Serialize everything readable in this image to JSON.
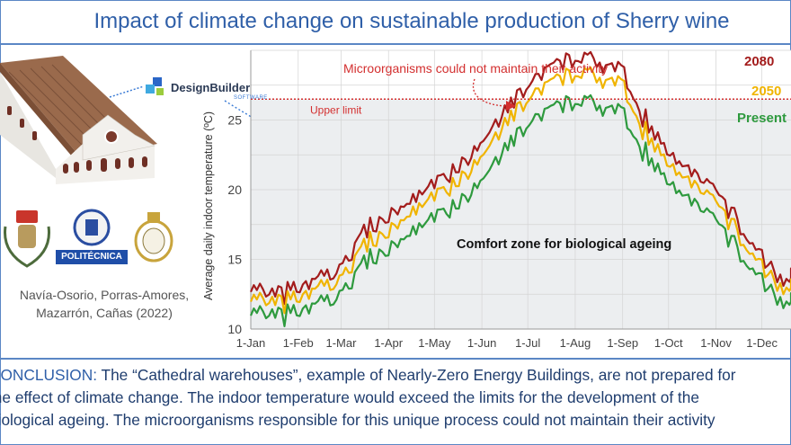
{
  "title": "Impact of climate change on sustainable production of Sherry wine",
  "reference_line1": "Navía-Osorio, Porras-Amores,",
  "reference_line2": "Mazarrón, Cañas (2022)",
  "software": {
    "name": "DesignBuilder",
    "sub": "SOFTWARE"
  },
  "institution_badge": "POLITÉCNICA",
  "conclusion": {
    "lead": "CONCLUSION:",
    "line1": " The “Cathedral warehouses”, example of Nearly-Zero Energy Buildings, are not prepared for",
    "line2": "the effect of climate change. The indoor temperature would exceed the limits for the development of the",
    "line3": "biological ageing. The microorganisms responsible for this unique process could not maintain their activity"
  },
  "colors": {
    "accent": "#2f5fa8",
    "y2080": "#a31c1c",
    "y2050": "#f0b400",
    "present": "#2e9a3e",
    "upper_limit": "#d32f2f"
  },
  "chart_data": {
    "type": "line",
    "title": "",
    "ylabel": "Average daily indoor temperature (ºC)",
    "xlabel": "",
    "x_ticks": [
      "1-Jan",
      "1-Feb",
      "1-Mar",
      "1-Apr",
      "1-May",
      "1-Jun",
      "1-Jul",
      "1-Aug",
      "1-Sep",
      "1-Oct",
      "1-Nov",
      "1-Dec"
    ],
    "y_ticks": [
      10,
      15,
      20,
      25
    ],
    "ylim": [
      10,
      30
    ],
    "grid": true,
    "legend_placement": "top-right",
    "series": [
      {
        "name": "2080",
        "color": "#a31c1c",
        "x": [
          "1-Jan",
          "15-Jan",
          "1-Feb",
          "15-Feb",
          "1-Mar",
          "15-Mar",
          "1-Apr",
          "15-Apr",
          "1-May",
          "15-May",
          "1-Jun",
          "15-Jun",
          "1-Jul",
          "15-Jul",
          "1-Aug",
          "15-Aug",
          "1-Sep",
          "15-Sep",
          "1-Oct",
          "15-Oct",
          "1-Nov",
          "15-Nov",
          "1-Dec",
          "15-Dec",
          "31-Dec"
        ],
        "values": [
          13.3,
          12.4,
          12.8,
          13.6,
          14.3,
          16.9,
          17.9,
          19.1,
          20.3,
          21.7,
          23.5,
          25.5,
          27.4,
          28.7,
          29.5,
          28.9,
          28.6,
          25.1,
          22.7,
          21.3,
          19.8,
          17.6,
          15.2,
          13.3,
          14.1
        ]
      },
      {
        "name": "2050",
        "color": "#f0b400",
        "x": [
          "1-Jan",
          "15-Jan",
          "1-Feb",
          "15-Feb",
          "1-Mar",
          "15-Mar",
          "1-Apr",
          "15-Apr",
          "1-May",
          "15-May",
          "1-Jun",
          "15-Jun",
          "1-Jul",
          "15-Jul",
          "1-Aug",
          "15-Aug",
          "1-Sep",
          "15-Sep",
          "1-Oct",
          "15-Oct",
          "1-Nov",
          "15-Nov",
          "1-Dec",
          "15-Dec",
          "31-Dec"
        ],
        "values": [
          12.6,
          11.8,
          12.1,
          12.9,
          13.5,
          15.9,
          16.8,
          18.2,
          19.4,
          20.7,
          22.5,
          24.6,
          26.4,
          27.6,
          28.4,
          27.8,
          27.6,
          24.2,
          21.9,
          20.5,
          19.0,
          16.8,
          14.5,
          12.7,
          13.3
        ]
      },
      {
        "name": "Present",
        "color": "#2e9a3e",
        "x": [
          "1-Jan",
          "15-Jan",
          "1-Feb",
          "15-Feb",
          "1-Mar",
          "15-Mar",
          "1-Apr",
          "15-Apr",
          "1-May",
          "15-May",
          "1-Jun",
          "15-Jun",
          "1-Jul",
          "15-Jul",
          "1-Aug",
          "15-Aug",
          "1-Sep",
          "15-Sep",
          "1-Oct",
          "15-Oct",
          "1-Nov",
          "15-Nov",
          "1-Dec",
          "15-Dec",
          "31-Dec"
        ],
        "values": [
          11.6,
          10.9,
          11.1,
          11.8,
          12.4,
          14.7,
          15.5,
          16.8,
          17.9,
          19.1,
          20.8,
          22.8,
          24.6,
          25.7,
          26.4,
          25.8,
          25.6,
          22.7,
          20.6,
          19.2,
          17.7,
          15.6,
          13.5,
          11.7,
          12.3
        ]
      }
    ],
    "upper_limit": {
      "value": 26.5,
      "label": "Upper limit"
    },
    "annotations": [
      "Microorganisms could not maintain their activity",
      "Comfort zone for biological ageing"
    ]
  }
}
